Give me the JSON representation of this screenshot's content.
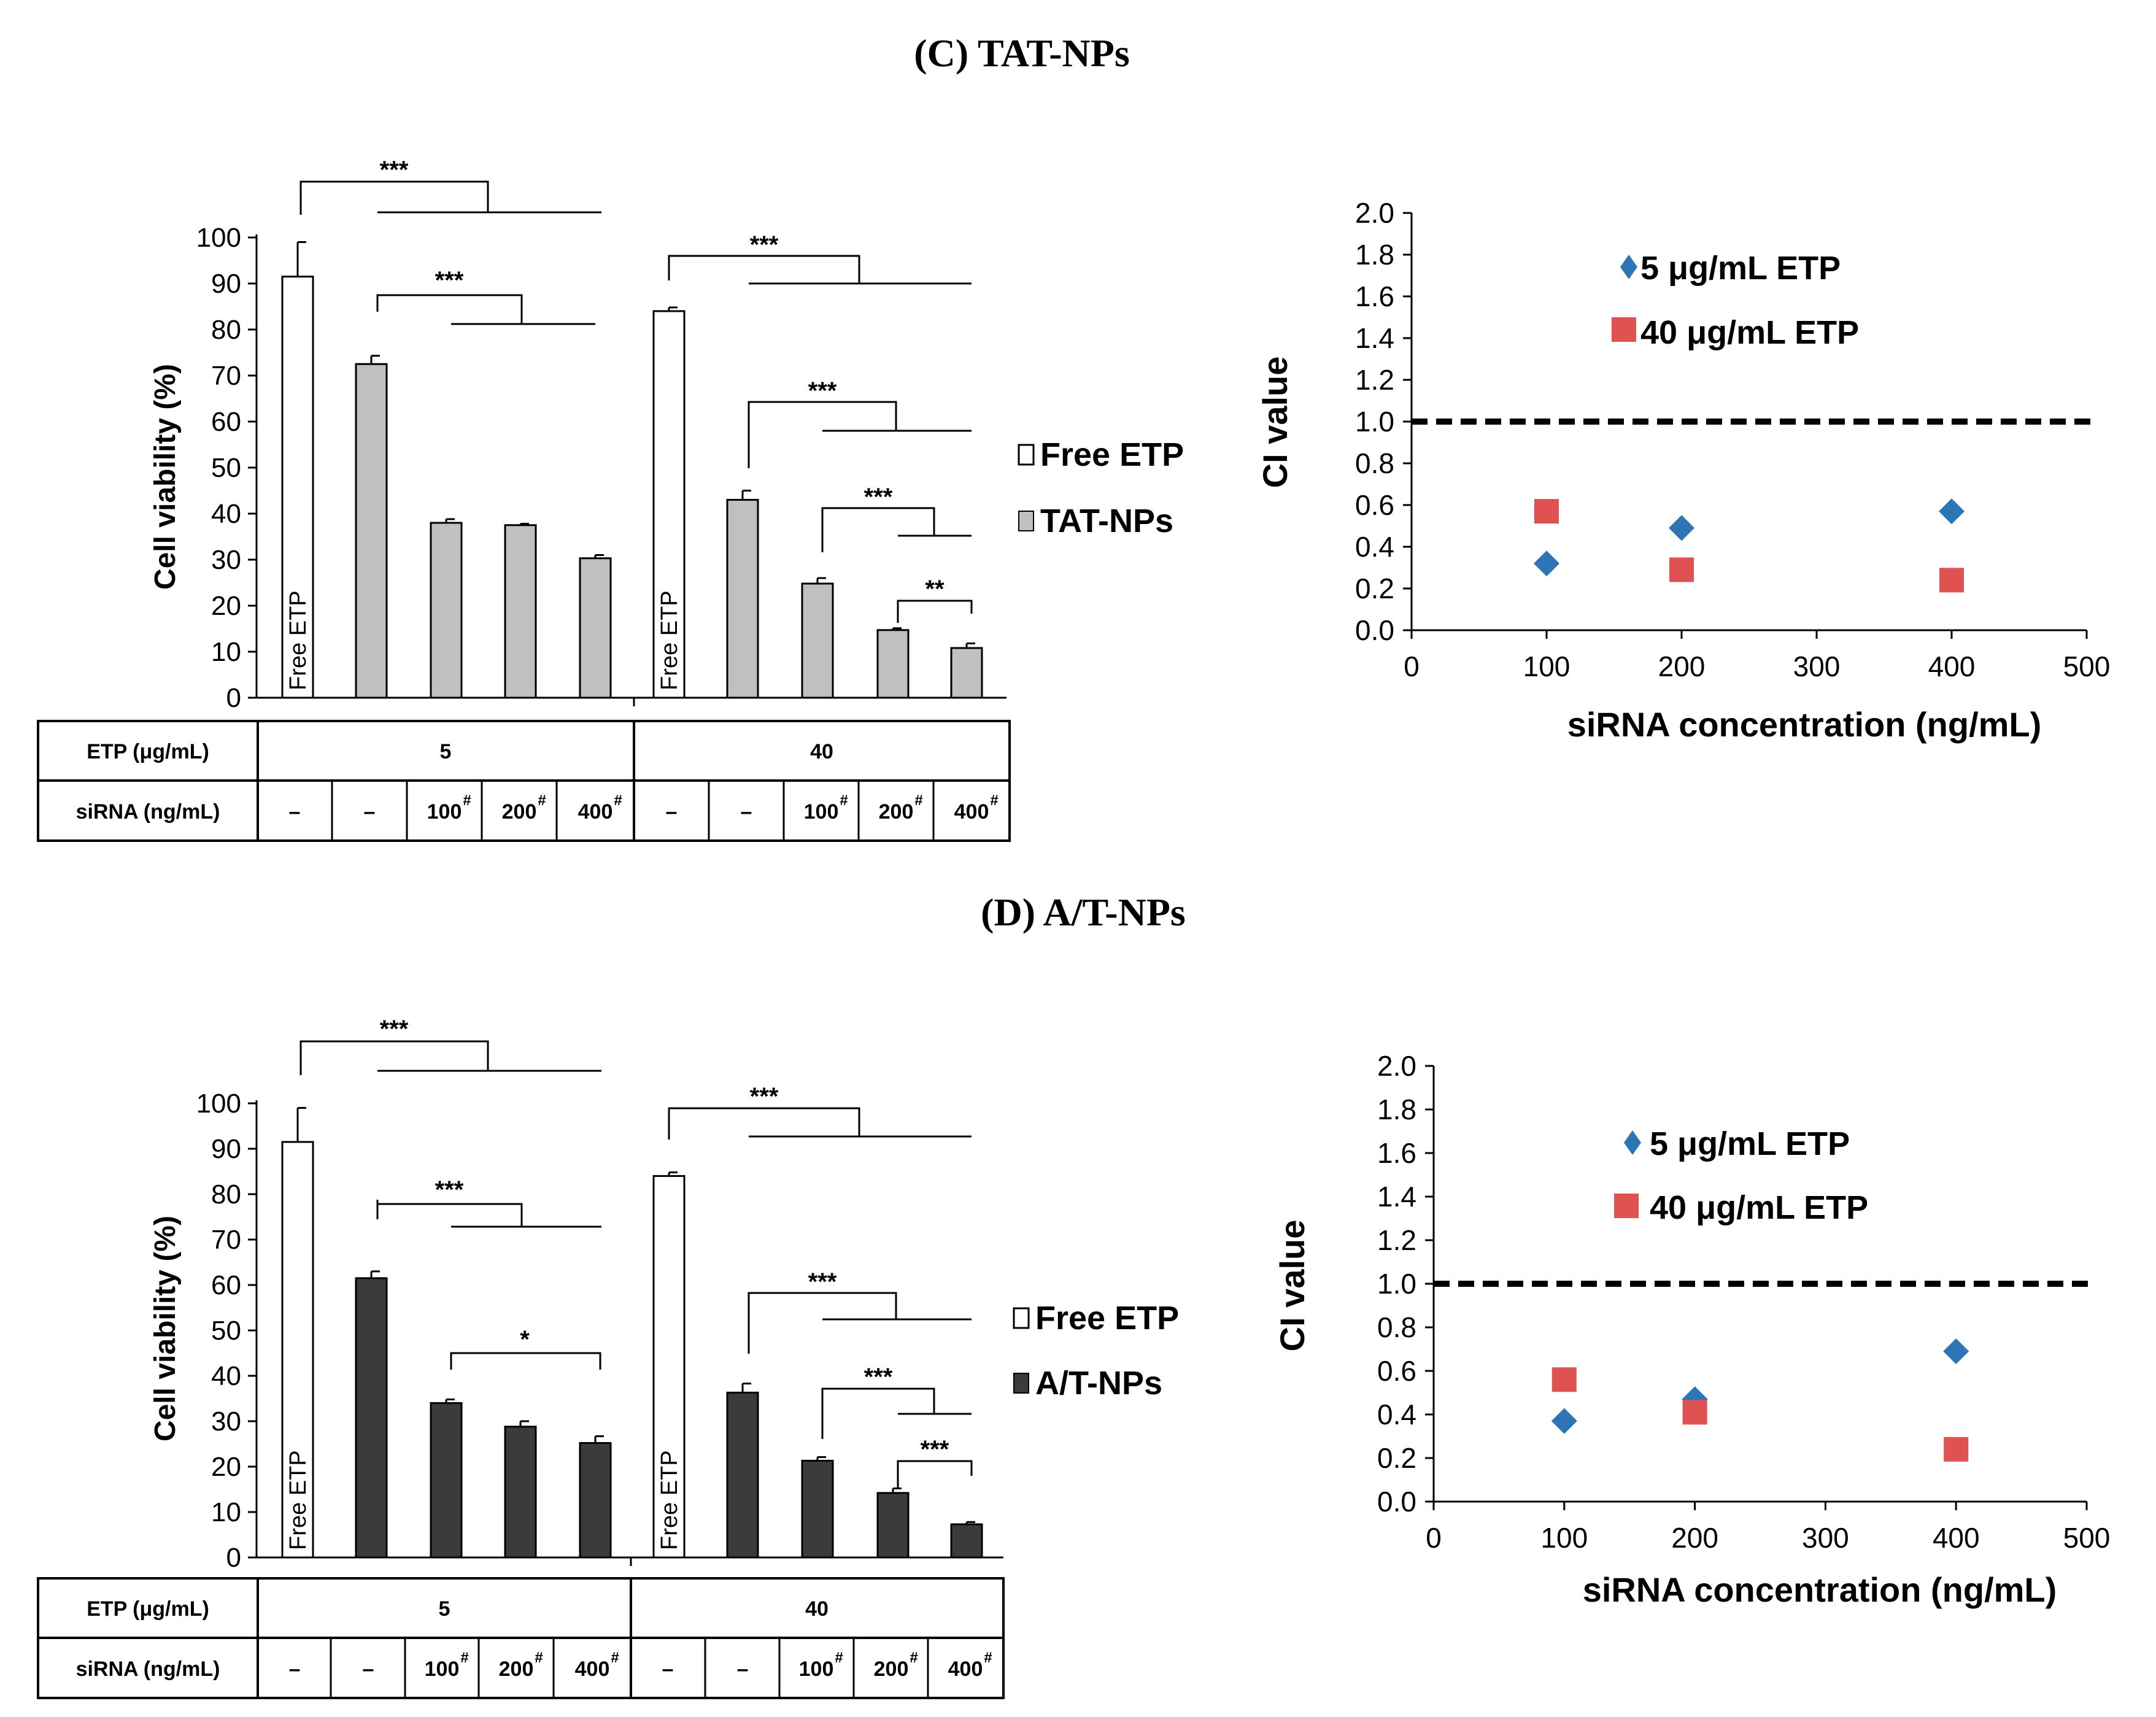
{
  "panels": [
    {
      "title": "(C) TAT-NPs",
      "bar": {
        "ylabel": "Cell viability (%)",
        "yticks": [
          "0",
          "10",
          "20",
          "30",
          "40",
          "50",
          "60",
          "70",
          "80",
          "90",
          "100"
        ],
        "free_label": "Free ETP",
        "legend": [
          "Free ETP",
          "TAT-NPs"
        ],
        "fill": "#c0c0c0",
        "table": {
          "etp_header": "ETP (μg/mL)",
          "sirna_header": "siRNA (ng/mL)",
          "groups": [
            "5",
            "40"
          ],
          "sirna": [
            "–",
            "–",
            "100",
            "200",
            "400",
            "–",
            "–",
            "100",
            "200",
            "400"
          ],
          "mark": "#"
        },
        "sig": [
          "***",
          "***",
          "***",
          "***",
          "***",
          "**"
        ]
      },
      "ci": {
        "ylabel": "CI value",
        "xlabel": "siRNA concentration (ng/mL)",
        "xticks": [
          "0",
          "100",
          "200",
          "300",
          "400",
          "500"
        ],
        "yticks": [
          "0.0",
          "0.2",
          "0.4",
          "0.6",
          "0.8",
          "1.0",
          "1.2",
          "1.4",
          "1.6",
          "1.8",
          "2.0"
        ],
        "legend": [
          "5 μg/mL ETP",
          "40 μg/mL ETP"
        ]
      }
    },
    {
      "title": "(D) A/T-NPs",
      "bar": {
        "ylabel": "Cell viability (%)",
        "yticks": [
          "0",
          "10",
          "20",
          "30",
          "40",
          "50",
          "60",
          "70",
          "80",
          "90",
          "100"
        ],
        "free_label": "Free ETP",
        "legend": [
          "Free ETP",
          "A/T-NPs"
        ],
        "fill": "#3b3b3b",
        "table": {
          "etp_header": "ETP (μg/mL)",
          "sirna_header": "siRNA (ng/mL)",
          "groups": [
            "5",
            "40"
          ],
          "sirna": [
            "–",
            "–",
            "100",
            "200",
            "400",
            "–",
            "–",
            "100",
            "200",
            "400"
          ],
          "mark": "#"
        },
        "sig": [
          "***",
          "***",
          "*",
          "***",
          "***",
          "***",
          "***"
        ]
      },
      "ci": {
        "ylabel": "CI value",
        "xlabel": "siRNA concentration (ng/mL)",
        "xticks": [
          "0",
          "100",
          "200",
          "300",
          "400",
          "500"
        ],
        "yticks": [
          "0.0",
          "0.2",
          "0.4",
          "0.6",
          "0.8",
          "1.0",
          "1.2",
          "1.4",
          "1.6",
          "1.8",
          "2.0"
        ],
        "legend": [
          "5 μg/mL ETP",
          "40 μg/mL ETP"
        ]
      }
    }
  ],
  "colors": {
    "blue": "#2e75b6",
    "red": "#e05252",
    "black": "#000000",
    "white": "#ffffff"
  },
  "chart_data": [
    {
      "type": "bar",
      "title": "(C) TAT-NPs",
      "ylabel": "Cell viability (%)",
      "ylim": [
        0,
        100
      ],
      "categories": [
        "Free ETP 5",
        "ETP 5",
        "5 + 100",
        "5 + 200",
        "5 + 400",
        "Free ETP 40",
        "ETP 40",
        "40 + 100",
        "40 + 200",
        "40 + 400"
      ],
      "values": [
        91.5,
        72.5,
        38,
        37.5,
        30.3,
        84,
        43,
        24.8,
        14.7,
        10.8
      ],
      "errors": [
        7.5,
        1.8,
        0.8,
        0.3,
        0.7,
        0.8,
        2,
        1.2,
        0.4,
        1
      ],
      "bar_kind": [
        "free",
        "np",
        "np",
        "np",
        "np",
        "free",
        "np",
        "np",
        "np",
        "np"
      ]
    },
    {
      "type": "scatter",
      "title": "(C) TAT-NPs",
      "xlabel": "siRNA concentration (ng/mL)",
      "ylabel": "CI value",
      "xlim": [
        0,
        500
      ],
      "ylim": [
        0,
        2
      ],
      "reference_line": 1.0,
      "series": [
        {
          "name": "5 μg/mL ETP",
          "marker": "diamond",
          "x": [
            100,
            200,
            400
          ],
          "y": [
            0.32,
            0.49,
            0.57
          ]
        },
        {
          "name": "40 μg/mL ETP",
          "marker": "square",
          "x": [
            100,
            200,
            400
          ],
          "y": [
            0.57,
            0.29,
            0.24
          ]
        }
      ]
    },
    {
      "type": "bar",
      "title": "(D) A/T-NPs",
      "ylabel": "Cell viability (%)",
      "ylim": [
        0,
        100
      ],
      "categories": [
        "Free ETP 5",
        "ETP 5",
        "5 + 100",
        "5 + 200",
        "5 + 400",
        "Free ETP 40",
        "ETP 40",
        "40 + 100",
        "40 + 200",
        "40 + 400"
      ],
      "values": [
        91.5,
        61.5,
        34,
        28.8,
        25.2,
        84,
        36.3,
        21.3,
        14.2,
        7.3
      ],
      "errors": [
        7.5,
        1.5,
        0.8,
        1.2,
        1.5,
        0.8,
        2,
        0.8,
        1,
        0.5
      ],
      "bar_kind": [
        "free",
        "np",
        "np",
        "np",
        "np",
        "free",
        "np",
        "np",
        "np",
        "np"
      ]
    },
    {
      "type": "scatter",
      "title": "(D) A/T-NPs",
      "xlabel": "siRNA concentration (ng/mL)",
      "ylabel": "CI value",
      "xlim": [
        0,
        500
      ],
      "ylim": [
        0,
        2
      ],
      "reference_line": 1.0,
      "series": [
        {
          "name": "5 μg/mL ETP",
          "marker": "diamond",
          "x": [
            100,
            200,
            400
          ],
          "y": [
            0.37,
            0.47,
            0.69
          ]
        },
        {
          "name": "40 μg/mL ETP",
          "marker": "square",
          "x": [
            100,
            200,
            400
          ],
          "y": [
            0.56,
            0.41,
            0.24
          ]
        }
      ]
    }
  ]
}
